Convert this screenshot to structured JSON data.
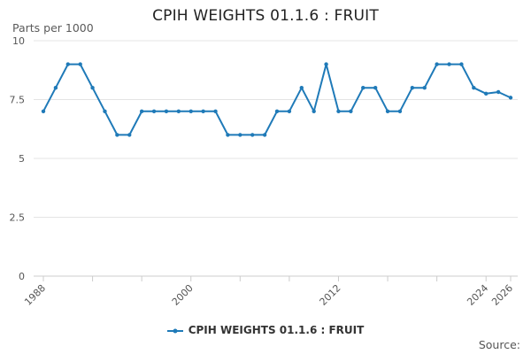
{
  "chart_data": {
    "type": "line",
    "title": "CPIH WEIGHTS 01.1.6 : FRUIT",
    "ylabel": "Parts per 1000",
    "xlabel": "",
    "ylim": [
      0,
      10
    ],
    "y_ticks": [
      0,
      2.5,
      5,
      7.5,
      10
    ],
    "y_tick_labels": [
      "0",
      "2.5",
      "5",
      "7.5",
      "10"
    ],
    "xlim": [
      1988,
      2026
    ],
    "x_ticks": [
      1988,
      2000,
      2012,
      2024,
      2026
    ],
    "x_tick_labels": [
      "1988",
      "2000",
      "2012",
      "2024",
      "2026"
    ],
    "grid": true,
    "legend_position": "bottom",
    "series": [
      {
        "name": "CPIH WEIGHTS 01.1.6 : FRUIT",
        "color": "#1f7ab8",
        "x": [
          1988,
          1989,
          1990,
          1991,
          1992,
          1993,
          1994,
          1995,
          1996,
          1997,
          1998,
          1999,
          2000,
          2001,
          2002,
          2003,
          2004,
          2005,
          2006,
          2007,
          2008,
          2009,
          2010,
          2011,
          2012,
          2013,
          2014,
          2015,
          2016,
          2017,
          2018,
          2019,
          2020,
          2021,
          2022,
          2023,
          2024,
          2025,
          2026
        ],
        "values": [
          7,
          8,
          9,
          9,
          8,
          7,
          6,
          6,
          7,
          7,
          7,
          7,
          7,
          7,
          7,
          6,
          6,
          6,
          6,
          7,
          7,
          8,
          7,
          9,
          7,
          7,
          8,
          8,
          7,
          7,
          8,
          8,
          9,
          9,
          9,
          8,
          7.75,
          7.82,
          7.58
        ]
      }
    ]
  },
  "source_label": "Source:"
}
